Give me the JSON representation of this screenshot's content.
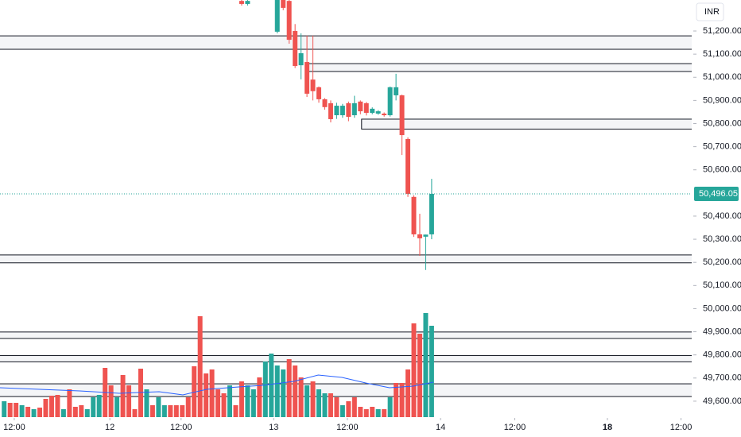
{
  "chart_data": {
    "type": "candlestick",
    "currency": "INR",
    "xlim": [
      -0.7,
      115.8
    ],
    "ylim": [
      49531,
      51334
    ],
    "y2lim": [
      0,
      525
    ],
    "yticks": [
      {
        "value": 49600,
        "label": "49,600.00"
      },
      {
        "value": 49700,
        "label": "49,700.00"
      },
      {
        "value": 49800,
        "label": "49,800.00"
      },
      {
        "value": 49900,
        "label": "49,900.00"
      },
      {
        "value": 50000,
        "label": "50,000.00"
      },
      {
        "value": 50100,
        "label": "50,100.00"
      },
      {
        "value": 50200,
        "label": "50,200.00"
      },
      {
        "value": 50300,
        "label": "50,300.00"
      },
      {
        "value": 50400,
        "label": "50,400.00"
      },
      {
        "value": 50600,
        "label": "50,600.00"
      },
      {
        "value": 50700,
        "label": "50,700.00"
      },
      {
        "value": 50800,
        "label": "50,800.00"
      },
      {
        "value": 50900,
        "label": "50,900.00"
      },
      {
        "value": 51000,
        "label": "51,000.00"
      },
      {
        "value": 51100,
        "label": "51,100.00"
      },
      {
        "value": 51200,
        "label": "51,200.00"
      }
    ],
    "xticks": [
      {
        "value": 1.7,
        "label": "12:00"
      },
      {
        "value": 17.8,
        "label": "12"
      },
      {
        "value": 29.8,
        "label": "12:00"
      },
      {
        "value": 45.4,
        "label": "13"
      },
      {
        "value": 57.8,
        "label": "12:00"
      },
      {
        "value": 73.5,
        "label": "14"
      },
      {
        "value": 86,
        "label": "12:00"
      },
      {
        "value": 101.6,
        "label": "18",
        "bold": true
      },
      {
        "value": 114,
        "label": "12:00"
      }
    ],
    "up_color": "#26a69a",
    "down_color": "#ef5350",
    "last_price": {
      "value": 50496.05,
      "label": "50,496.05"
    },
    "candles": {
      "x": [
        40,
        41,
        46,
        47,
        48,
        49,
        50,
        51,
        52,
        53,
        54,
        55,
        56,
        57,
        58,
        59,
        60,
        61,
        62,
        63,
        64,
        65,
        66,
        67,
        68,
        69,
        70,
        71,
        72
      ],
      "open": [
        51330,
        51317,
        51197,
        51334,
        51330,
        51200,
        51052,
        51066,
        50990,
        50957,
        50905,
        50888,
        50836,
        50836,
        50888,
        50836,
        50895,
        50888,
        50846,
        50843,
        50843,
        50836,
        50922,
        50922,
        50733,
        50483,
        50321,
        50311,
        50321
      ],
      "high": [
        51334,
        51334,
        51340,
        51340,
        51340,
        51230,
        51190,
        51180,
        51180,
        50960,
        50910,
        50900,
        50890,
        50885,
        50895,
        50920,
        50900,
        50893,
        50870,
        50858,
        50848,
        50960,
        51015,
        50925,
        50740,
        50490,
        50410,
        50320,
        50561
      ],
      "low": [
        51310,
        51310,
        51190,
        51290,
        51145,
        51040,
        50991,
        50915,
        50900,
        50890,
        50860,
        50805,
        50820,
        50825,
        50810,
        50825,
        50840,
        50835,
        50840,
        50838,
        50830,
        50830,
        50900,
        50664,
        50483,
        50310,
        50228,
        50167,
        50300
      ],
      "close": [
        51317,
        51330,
        51334,
        51300,
        51162,
        51049,
        51104,
        50929,
        50940,
        50905,
        50871,
        50819,
        50877,
        50877,
        50829,
        50888,
        50853,
        50846,
        50864,
        50853,
        50836,
        50957,
        50957,
        50750,
        50496,
        50321,
        50304,
        50320,
        50496.05
      ]
    },
    "volume": {
      "axis": "y2",
      "values": [
        20,
        18,
        18,
        15,
        13,
        10,
        12,
        23,
        27,
        28,
        10,
        35,
        13,
        15,
        10,
        25,
        28,
        62,
        40,
        25,
        53,
        40,
        10,
        61,
        35,
        15,
        25,
        15,
        15,
        15,
        15,
        25,
        64,
        127,
        55,
        60,
        35,
        30,
        40,
        15,
        45,
        40,
        35,
        50,
        70,
        80,
        65,
        60,
        73,
        65,
        50,
        40,
        45,
        35,
        30,
        30,
        25,
        15,
        20,
        25,
        13,
        10,
        13,
        10,
        10,
        25,
        43,
        43,
        60,
        118,
        105,
        131,
        115
      ],
      "colors": [
        "#26a69a",
        "#ef5350",
        "#ef5350",
        "#26a69a",
        "#ef5350",
        "#26a69a",
        "#ef5350",
        "#ef5350",
        "#ef5350",
        "#ef5350",
        "#26a69a",
        "#ef5350",
        "#ef5350",
        "#ef5350",
        "#26a69a",
        "#26a69a",
        "#26a69a",
        "#ef5350",
        "#ef5350",
        "#26a69a",
        "#ef5350",
        "#ef5350",
        "#ef5350",
        "#ef5350",
        "#26a69a",
        "#ef5350",
        "#26a69a",
        "#26a69a",
        "#ef5350",
        "#ef5350",
        "#ef5350",
        "#ef5350",
        "#ef5350",
        "#ef5350",
        "#ef5350",
        "#ef5350",
        "#ef5350",
        "#ef5350",
        "#26a69a",
        "#ef5350",
        "#ef5350",
        "#26a69a",
        "#26a69a",
        "#ef5350",
        "#26a69a",
        "#26a69a",
        "#26a69a",
        "#26a69a",
        "#ef5350",
        "#ef5350",
        "#ef5350",
        "#26a69a",
        "#ef5350",
        "#26a69a",
        "#26a69a",
        "#ef5350",
        "#ef5350",
        "#26a69a",
        "#ef5350",
        "#ef5350",
        "#ef5350",
        "#ef5350",
        "#ef5350",
        "#26a69a",
        "#ef5350",
        "#26a69a",
        "#ef5350",
        "#ef5350",
        "#ef5350",
        "#ef5350",
        "#ef5350",
        "#26a69a",
        "#26a69a"
      ]
    },
    "volume_ma": {
      "axis": "y2",
      "color": "#2962ff",
      "x": [
        -0.7,
        6,
        12.7,
        19.4,
        26.1,
        30.1,
        34.1,
        39.5,
        43.5,
        48.8,
        52.9,
        56.9,
        60.9,
        64.9,
        68.9,
        72.3
      ],
      "values": [
        37,
        35,
        33,
        30,
        32,
        28,
        35,
        38,
        40,
        45,
        53,
        50,
        43,
        37,
        39,
        44
      ]
    },
    "zones": [
      {
        "from": 51121,
        "to": 51179
      },
      {
        "from": 51025,
        "to": 51059,
        "start": 51.3
      },
      {
        "from": 50776,
        "to": 50819,
        "start": 60.2
      },
      {
        "from": 50198,
        "to": 50232
      },
      {
        "from": 49871,
        "to": 49899
      },
      {
        "from": 49770,
        "to": 49797
      },
      {
        "from": 49620,
        "to": 49675
      }
    ]
  }
}
